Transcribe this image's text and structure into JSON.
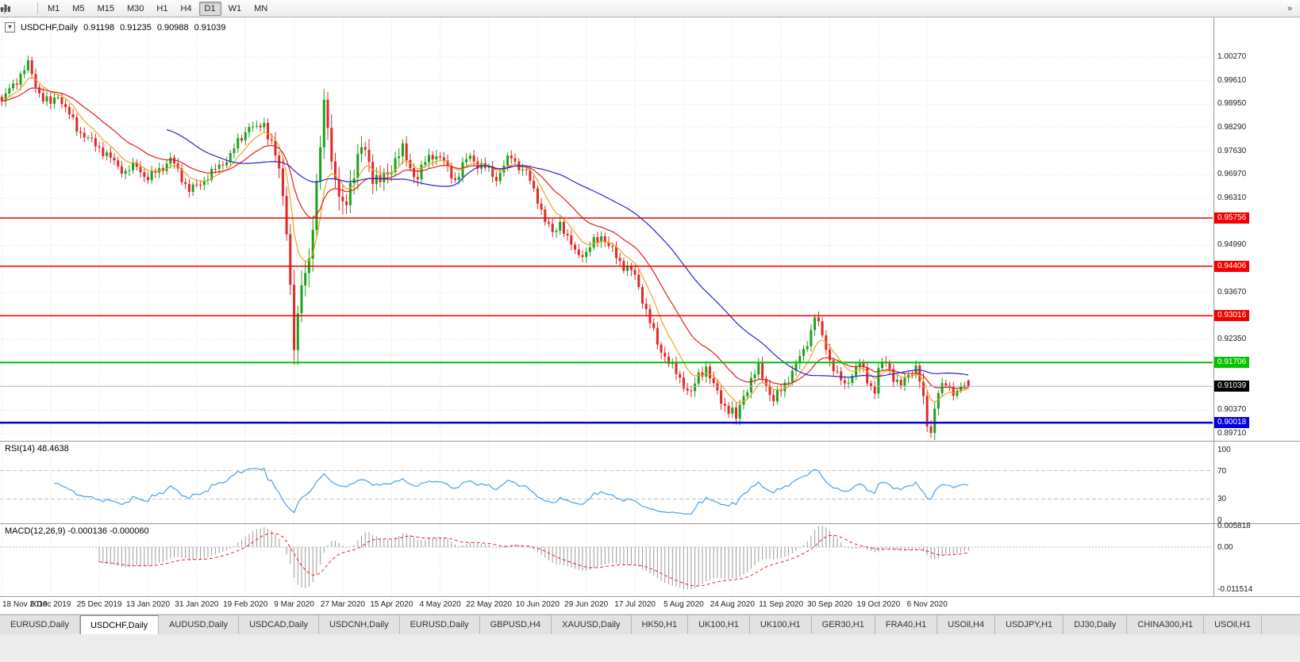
{
  "toolbar": {
    "timeframes": [
      {
        "label": "M1",
        "active": false
      },
      {
        "label": "M5",
        "active": false
      },
      {
        "label": "M15",
        "active": false
      },
      {
        "label": "M30",
        "active": false
      },
      {
        "label": "H1",
        "active": false
      },
      {
        "label": "H4",
        "active": false
      },
      {
        "label": "D1",
        "active": true
      },
      {
        "label": "W1",
        "active": false
      },
      {
        "label": "MN",
        "active": false
      }
    ],
    "overflow_glyph": "»"
  },
  "window": {
    "title_symbol": "USDCHF,Daily",
    "open": "0.91198",
    "high": "0.91235",
    "low": "0.90988",
    "close": "0.91039",
    "dropdown_glyph": "▼"
  },
  "chart_data": {
    "type": "candlestick",
    "symbol": "USDCHF",
    "timeframe": "Daily",
    "x_axis": {
      "bars_per_label": 13,
      "labels": [
        "18 Nov 2019",
        "6 Dec 2019",
        "25 Dec 2019",
        "13 Jan 2020",
        "31 Jan 2020",
        "19 Feb 2020",
        "9 Mar 2020",
        "27 Mar 2020",
        "15 Apr 2020",
        "4 May 2020",
        "22 May 2020",
        "10 Jun 2020",
        "29 Jun 2020",
        "17 Jul 2020",
        "5 Aug 2020",
        "24 Aug 2020",
        "11 Sep 2020",
        "30 Sep 2020",
        "19 Oct 2020",
        "6 Nov 2020"
      ]
    },
    "price_axis": {
      "ticks": [
        "1.00270",
        "0.99610",
        "0.98950",
        "0.98290",
        "0.97630",
        "0.96970",
        "0.96310",
        "0.95650",
        "0.94990",
        "0.94330",
        "0.93670",
        "0.93010",
        "0.92350",
        "0.91690",
        "0.91030",
        "0.90370",
        "0.89710"
      ]
    },
    "levels": [
      {
        "price": "0.95756",
        "color": "#f00000",
        "line_width": 1.5
      },
      {
        "price": "0.94406",
        "color": "#f00000",
        "line_width": 1.5
      },
      {
        "price": "0.93016",
        "color": "#f00000",
        "line_width": 1.5
      },
      {
        "price": "0.91706",
        "color": "#00c400",
        "line_width": 2
      },
      {
        "price": "0.90018",
        "color": "#0000e0",
        "line_width": 2.5
      }
    ],
    "current_price": "0.91039",
    "last_ohlc": [
      0.91198,
      0.91235,
      0.90988,
      0.91039
    ],
    "bar_count": 259,
    "close_anchors": [
      [
        0,
        0.99
      ],
      [
        2,
        0.9935
      ],
      [
        4,
        0.9965
      ],
      [
        7,
        1.0005
      ],
      [
        9,
        0.995
      ],
      [
        11,
        0.991
      ],
      [
        13,
        0.9895
      ],
      [
        15,
        0.9925
      ],
      [
        17,
        0.988
      ],
      [
        20,
        0.983
      ],
      [
        23,
        0.9795
      ],
      [
        26,
        0.9775
      ],
      [
        29,
        0.974
      ],
      [
        33,
        0.9705
      ],
      [
        36,
        0.9722
      ],
      [
        39,
        0.9685
      ],
      [
        42,
        0.9712
      ],
      [
        45,
        0.974
      ],
      [
        48,
        0.969
      ],
      [
        50,
        0.9655
      ],
      [
        52,
        0.9662
      ],
      [
        55,
        0.9695
      ],
      [
        58,
        0.9718
      ],
      [
        61,
        0.9755
      ],
      [
        64,
        0.98
      ],
      [
        66,
        0.984
      ],
      [
        68,
        0.9822
      ],
      [
        70,
        0.984
      ],
      [
        72,
        0.979
      ],
      [
        74,
        0.97
      ],
      [
        76,
        0.956
      ],
      [
        78,
        0.922
      ],
      [
        79,
        0.9265
      ],
      [
        80,
        0.938
      ],
      [
        82,
        0.948
      ],
      [
        84,
        0.965
      ],
      [
        86,
        0.989
      ],
      [
        87,
        0.9855
      ],
      [
        88,
        0.975
      ],
      [
        89,
        0.968
      ],
      [
        90,
        0.9625
      ],
      [
        91,
        0.959
      ],
      [
        93,
        0.968
      ],
      [
        95,
        0.974
      ],
      [
        97,
        0.9768
      ],
      [
        99,
        0.97
      ],
      [
        101,
        0.9672
      ],
      [
        103,
        0.97
      ],
      [
        105,
        0.9745
      ],
      [
        107,
        0.9762
      ],
      [
        109,
        0.9718
      ],
      [
        111,
        0.969
      ],
      [
        113,
        0.973
      ],
      [
        115,
        0.9758
      ],
      [
        117,
        0.9745
      ],
      [
        119,
        0.9712
      ],
      [
        121,
        0.9685
      ],
      [
        123,
        0.972
      ],
      [
        125,
        0.975
      ],
      [
        127,
        0.9728
      ],
      [
        130,
        0.9708
      ],
      [
        132,
        0.9688
      ],
      [
        134,
        0.9722
      ],
      [
        136,
        0.9748
      ],
      [
        138,
        0.9722
      ],
      [
        140,
        0.97
      ],
      [
        143,
        0.9632
      ],
      [
        145,
        0.9565
      ],
      [
        147,
        0.9532
      ],
      [
        149,
        0.9568
      ],
      [
        151,
        0.9512
      ],
      [
        153,
        0.9485
      ],
      [
        156,
        0.9472
      ],
      [
        158,
        0.951
      ],
      [
        160,
        0.953
      ],
      [
        162,
        0.9492
      ],
      [
        164,
        0.947
      ],
      [
        166,
        0.9442
      ],
      [
        169,
        0.9412
      ],
      [
        171,
        0.9352
      ],
      [
        173,
        0.9282
      ],
      [
        175,
        0.9222
      ],
      [
        177,
        0.9192
      ],
      [
        179,
        0.9152
      ],
      [
        182,
        0.9112
      ],
      [
        184,
        0.9082
      ],
      [
        186,
        0.9132
      ],
      [
        188,
        0.9162
      ],
      [
        190,
        0.9102
      ],
      [
        192,
        0.9062
      ],
      [
        195,
        0.9032
      ],
      [
        196,
        0.9008
      ],
      [
        198,
        0.9082
      ],
      [
        200,
        0.9122
      ],
      [
        202,
        0.9152
      ],
      [
        204,
        0.9112
      ],
      [
        206,
        0.9062
      ],
      [
        208,
        0.9092
      ],
      [
        210,
        0.9132
      ],
      [
        212,
        0.9162
      ],
      [
        214,
        0.9202
      ],
      [
        216,
        0.9262
      ],
      [
        217,
        0.9302
      ],
      [
        218,
        0.9272
      ],
      [
        220,
        0.9212
      ],
      [
        221,
        0.9182
      ],
      [
        223,
        0.9132
      ],
      [
        225,
        0.9105
      ],
      [
        227,
        0.9142
      ],
      [
        229,
        0.9165
      ],
      [
        231,
        0.9122
      ],
      [
        233,
        0.9092
      ],
      [
        234,
        0.915
      ],
      [
        236,
        0.9172
      ],
      [
        238,
        0.9132
      ],
      [
        240,
        0.9102
      ],
      [
        242,
        0.9135
      ],
      [
        244,
        0.9162
      ],
      [
        245,
        0.9122
      ],
      [
        246,
        0.9052
      ],
      [
        247,
        0.8992
      ],
      [
        248,
        0.8978
      ],
      [
        249,
        0.9052
      ],
      [
        250,
        0.9092
      ],
      [
        252,
        0.9105
      ],
      [
        254,
        0.9088
      ],
      [
        256,
        0.9102
      ],
      [
        258,
        0.91039
      ]
    ],
    "volatility_anchors": [
      [
        0,
        1
      ],
      [
        70,
        1
      ],
      [
        75,
        2
      ],
      [
        79,
        3
      ],
      [
        86,
        2.2
      ],
      [
        90,
        2.6
      ],
      [
        100,
        1.8
      ],
      [
        108,
        1.4
      ],
      [
        120,
        1.1
      ],
      [
        140,
        1
      ],
      [
        168,
        1.1
      ],
      [
        200,
        1.2
      ],
      [
        215,
        1.1
      ],
      [
        244,
        1
      ],
      [
        246,
        1.6
      ],
      [
        249,
        1.4
      ],
      [
        252,
        0.9
      ],
      [
        258,
        0.7
      ]
    ],
    "synthesis": {
      "wiggle": [
        0.0009,
        0.0007
      ],
      "range": [
        0.0013,
        0.0009
      ]
    },
    "moving_averages": [
      {
        "period": 8,
        "type": "ema",
        "color": "#efa420"
      },
      {
        "period": 21,
        "type": "ema",
        "color": "#e02020"
      },
      {
        "period": 45,
        "type": "sma",
        "color": "#2525cd"
      }
    ],
    "colors": {
      "up": "#1ca11c",
      "down": "#e22828",
      "grid": "#e0e0e0",
      "current_line": "#b4b4b4",
      "current_badge": "#000000"
    },
    "rsi": {
      "label": "RSI(14) 48.4638",
      "period": 14,
      "levels": [
        70,
        30
      ],
      "axis_ticks": [
        "100",
        "70",
        "30",
        "0"
      ],
      "color": "#4aa0e8"
    },
    "macd": {
      "label": "MACD(12,26,9) -0.000136 -0.000060",
      "fast": 12,
      "slow": 26,
      "signal": 9,
      "axis_ticks": [
        "0.005818",
        "0.00",
        "-0.011514"
      ],
      "histogram_color": "#9b9b9b",
      "signal_color": "#e02626"
    }
  },
  "tabs": [
    {
      "label": "EURUSD,Daily",
      "active": false
    },
    {
      "label": "USDCHF,Daily",
      "active": true
    },
    {
      "label": "AUDUSD,Daily",
      "active": false
    },
    {
      "label": "USDCAD,Daily",
      "active": false
    },
    {
      "label": "USDCNH,Daily",
      "active": false
    },
    {
      "label": "EURUSD,Daily",
      "active": false
    },
    {
      "label": "GBPUSD,H4",
      "active": false
    },
    {
      "label": "XAUUSD,Daily",
      "active": false
    },
    {
      "label": "HK50,H1",
      "active": false
    },
    {
      "label": "UK100,H1",
      "active": false
    },
    {
      "label": "UK100,H1",
      "active": false
    },
    {
      "label": "GER30,H1",
      "active": false
    },
    {
      "label": "FRA40,H1",
      "active": false
    },
    {
      "label": "USOil,H4",
      "active": false
    },
    {
      "label": "USDJPY,H1",
      "active": false
    },
    {
      "label": "DJ30,Daily",
      "active": false
    },
    {
      "label": "CHINA300,H1",
      "active": false
    },
    {
      "label": "USOil,H1",
      "active": false
    }
  ]
}
